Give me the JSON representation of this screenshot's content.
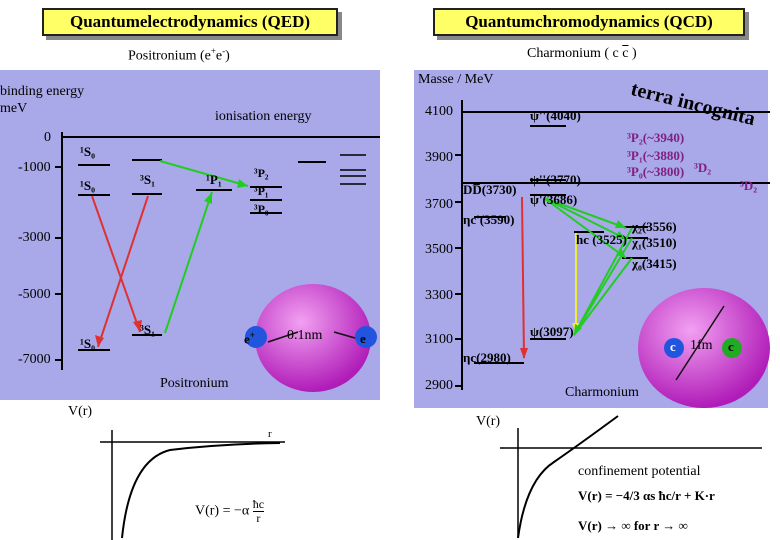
{
  "qed": {
    "title": "Quantumelectrodynamics (QED)",
    "subtitle": "Positronium (e+e-)",
    "yaxis_label_line1": "binding energy",
    "yaxis_label_line2": "meV",
    "ionisation_label": "ionisation energy",
    "ticks": [
      "0",
      "-1000",
      "-3000",
      "-5000",
      "-7000"
    ],
    "states": {
      "s1": "¹S₀",
      "s1b": "¹S₀",
      "s3": "³S₁",
      "p1": "¹P₁",
      "p2": "³P₂",
      "p1b": "³P₁",
      "p0": "³P₀",
      "s1c": "¹S₀",
      "s3b": "³S₁"
    },
    "size_label": "0.1nm",
    "particle_left": "e",
    "particle_left_sup": "+",
    "particle_right": "e",
    "name": "Positronium",
    "potential_axis": "V(r)",
    "r_label": "r",
    "formula_lhs": "V(r) = −α",
    "formula_num": "ħc",
    "formula_den": "r"
  },
  "qcd": {
    "title": "Quantumchromodynamics (QCD)",
    "subtitle": "Charmonium ( c c̅ )",
    "yaxis_label": "Masse / MeV",
    "ticks": [
      "4100",
      "3900",
      "3700",
      "3500",
      "3300",
      "3100",
      "2900"
    ],
    "terra": "terra incognita",
    "states": {
      "psi4040": "ψ''(4040)",
      "psi3770": "ψ''(3770)",
      "dd3730": "DD̅(3730)",
      "psi3686": "ψ'(3686)",
      "etac3590": "ηc'(3590)",
      "hc3525": "hc (3525)",
      "chi2": "χ₂(3556)",
      "chi1": "χ₁(3510)",
      "chi0": "χ₀(3415)",
      "psi3097": "ψ(3097)",
      "etac2980": "ηc(2980)",
      "p2_3940": "³P₂(~3940)",
      "p1_3880": "³P₁(~3880)",
      "p0_3800": "³P₀(~3800)",
      "d2": "³D₂",
      "d2b": "³D₂"
    },
    "size_label": "1fm",
    "quark_left": "c",
    "quark_right": "c",
    "name": "Charmonium",
    "potential_axis": "V(r)",
    "confinement": "confinement potential",
    "formula1": "V(r) = −4/3 αs ħc/r + K·r",
    "formula2": "V(r) → ∞  for r → ∞"
  },
  "colors": {
    "panel": "#a9a9e9",
    "axis": "#000000",
    "red_arrow": "#e03030",
    "green_arrow": "#22cc22",
    "yellow_arrow": "#eeee33",
    "sphere": "#cc33cc",
    "electron": "#2255dd",
    "quark_green": "#22aa22"
  }
}
